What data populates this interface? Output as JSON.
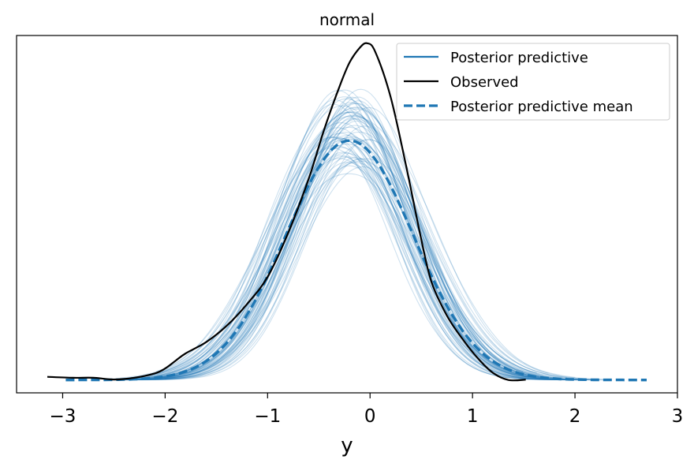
{
  "chart_data": {
    "type": "line",
    "title": "normal",
    "xlabel": "y",
    "ylabel": "",
    "xlim": [
      -3.45,
      3.0
    ],
    "ylim": [
      -0.02,
      0.535
    ],
    "xticks": [
      -3,
      -2,
      -1,
      0,
      1,
      2,
      3
    ],
    "xtick_labels": [
      "−3",
      "−2",
      "−1",
      "0",
      "1",
      "2",
      "3"
    ],
    "yticks_visible": false,
    "grid": false,
    "legend": {
      "position": "top-right",
      "entries": [
        {
          "label": "Posterior predictive",
          "style": "solid-thin",
          "color": "#1f77b4"
        },
        {
          "label": "Observed",
          "style": "solid",
          "color": "#000000"
        },
        {
          "label": "Posterior predictive mean",
          "style": "dashed",
          "color": "#1f77b4"
        }
      ]
    },
    "series": [
      {
        "name": "Observed",
        "color": "#000000",
        "x": [
          -3.15,
          -2.9,
          -2.7,
          -2.5,
          -2.3,
          -2.1,
          -2.0,
          -1.9,
          -1.8,
          -1.6,
          -1.4,
          -1.2,
          -1.0,
          -0.8,
          -0.6,
          -0.45,
          -0.3,
          -0.2,
          -0.1,
          -0.03,
          0.05,
          0.2,
          0.35,
          0.5,
          0.6,
          0.75,
          0.9,
          1.05,
          1.2,
          1.35,
          1.52
        ],
        "y": [
          0.0049,
          0.0034,
          0.0034,
          0.0007,
          0.0034,
          0.0103,
          0.0178,
          0.0296,
          0.0413,
          0.0588,
          0.084,
          0.118,
          0.16,
          0.228,
          0.312,
          0.388,
          0.455,
          0.493,
          0.516,
          0.523,
          0.51,
          0.44,
          0.334,
          0.218,
          0.152,
          0.1,
          0.064,
          0.034,
          0.011,
          0.0,
          0.0004
        ]
      },
      {
        "name": "Posterior predictive mean",
        "color": "#1f77b4",
        "dashed": true,
        "mu": -0.2,
        "sigma": 0.62,
        "amplitude": 0.372,
        "x_range": [
          -2.97,
          2.7
        ]
      }
    ],
    "posterior_samples": {
      "color": "#1f77b4",
      "count": 70,
      "mu_range": [
        -0.35,
        -0.05
      ],
      "sigma_range": [
        0.53,
        0.7
      ],
      "amplitude_range": [
        0.33,
        0.45
      ]
    }
  }
}
